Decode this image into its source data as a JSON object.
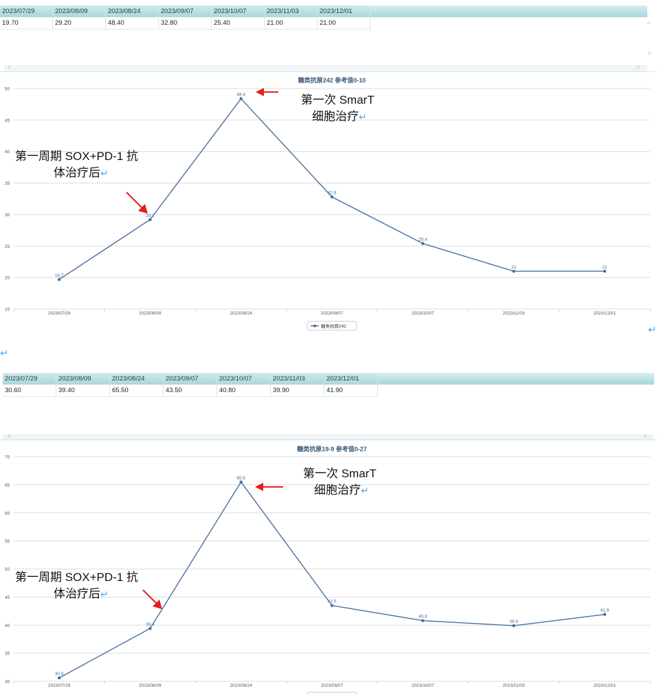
{
  "panels": [
    {
      "table": {
        "dates": [
          "2023/07/29",
          "2023/08/09",
          "2023/08/24",
          "2023/09/07",
          "2023/10/07",
          "2023/11/03",
          "2023/12/01"
        ],
        "values": [
          "19.70",
          "29.20",
          "48.40",
          "32.80",
          "25.40",
          "21.00",
          "21.00"
        ]
      },
      "chart_data": {
        "type": "line",
        "title": "糖类抗原242 参考值0-10",
        "categories": [
          "2023/07/29",
          "2023/08/09",
          "2023/08/24",
          "2023/09/07",
          "2023/10/07",
          "2023/11/03",
          "2023/12/01"
        ],
        "series": [
          {
            "name": "糖类抗原242",
            "values": [
              19.7,
              29.2,
              48.4,
              32.8,
              25.4,
              21,
              21
            ]
          }
        ],
        "point_labels": [
          "19.7",
          "29.2",
          "48.4",
          "32.8",
          "25.4",
          "21",
          "21"
        ],
        "ylim": [
          15,
          50
        ],
        "yticks": [
          15,
          20,
          25,
          30,
          35,
          40,
          45,
          50
        ],
        "grid": true,
        "legend": "bottom",
        "color": "#4a6f9c"
      },
      "annotations": [
        {
          "text": "第一次 SmarT",
          "text2": "细胞治疗",
          "mark": "↵"
        },
        {
          "text": "第一周期 SOX+PD-1 抗",
          "text2": "体治疗后",
          "mark": "↵"
        }
      ]
    },
    {
      "table": {
        "dates": [
          "2023/07/29",
          "2023/08/09",
          "2023/08/24",
          "2023/09/07",
          "2023/10/07",
          "2023/11/03",
          "2023/12/01"
        ],
        "values": [
          "30.60",
          "39.40",
          "65.50",
          "43.50",
          "40.80",
          "39.90",
          "41.90"
        ]
      },
      "chart_data": {
        "type": "line",
        "title": "糖类抗原19-9 参考值0-27",
        "categories": [
          "2023/07/29",
          "2023/08/09",
          "2023/08/24",
          "2023/09/07",
          "2023/10/07",
          "2023/11/03",
          "2023/12/01"
        ],
        "series": [
          {
            "name": "",
            "values": [
              30.6,
              39.4,
              65.5,
              43.5,
              40.8,
              39.9,
              41.9
            ]
          }
        ],
        "point_labels": [
          "30.6",
          "39.4",
          "65.5",
          "43.5",
          "40.8",
          "39.9",
          "41.9"
        ],
        "ylim": [
          30,
          70
        ],
        "yticks": [
          30,
          35,
          40,
          45,
          50,
          55,
          60,
          65,
          70
        ],
        "grid": true,
        "legend": "bottom",
        "color": "#4a6f9c"
      },
      "annotations": [
        {
          "text": "第一次 SmarT",
          "text2": "细胞治疗",
          "mark": "↵"
        },
        {
          "text": "第一周期 SOX+PD-1 抗",
          "text2": "体治疗后",
          "mark": "↵"
        }
      ]
    }
  ],
  "scroll": {
    "left": "<",
    "right": ">",
    "up": "^",
    "down": "v"
  },
  "return_mark": "↵"
}
